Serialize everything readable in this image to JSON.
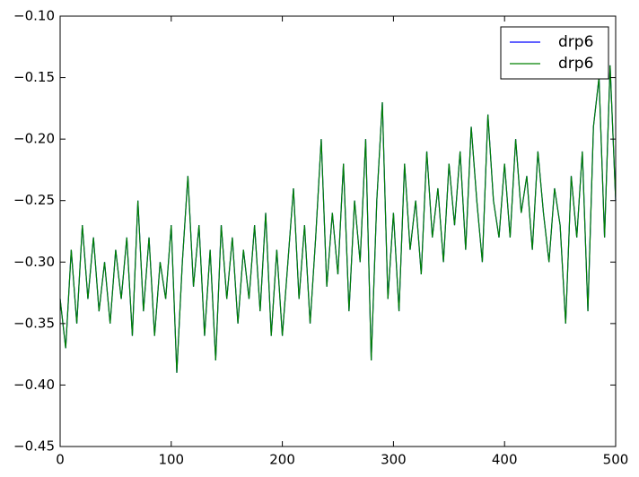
{
  "chart_data": {
    "type": "line",
    "x": [
      0,
      5,
      10,
      15,
      20,
      25,
      30,
      35,
      40,
      45,
      50,
      55,
      60,
      65,
      70,
      75,
      80,
      85,
      90,
      95,
      100,
      105,
      110,
      115,
      120,
      125,
      130,
      135,
      140,
      145,
      150,
      155,
      160,
      165,
      170,
      175,
      180,
      185,
      190,
      195,
      200,
      205,
      210,
      215,
      220,
      225,
      230,
      235,
      240,
      245,
      250,
      255,
      260,
      265,
      270,
      275,
      280,
      285,
      290,
      295,
      300,
      305,
      310,
      315,
      320,
      325,
      330,
      335,
      340,
      345,
      350,
      355,
      360,
      365,
      370,
      375,
      380,
      385,
      390,
      395,
      400,
      405,
      410,
      415,
      420,
      425,
      430,
      435,
      440,
      445,
      450,
      455,
      460,
      465,
      470,
      475,
      480,
      485,
      490,
      495,
      500
    ],
    "series": [
      {
        "name": "drp6",
        "color": "#0000ff",
        "values": [
          -0.33,
          -0.37,
          -0.29,
          -0.35,
          -0.27,
          -0.33,
          -0.28,
          -0.34,
          -0.3,
          -0.35,
          -0.29,
          -0.33,
          -0.28,
          -0.36,
          -0.25,
          -0.34,
          -0.28,
          -0.36,
          -0.3,
          -0.33,
          -0.27,
          -0.39,
          -0.3,
          -0.23,
          -0.32,
          -0.27,
          -0.36,
          -0.29,
          -0.38,
          -0.27,
          -0.33,
          -0.28,
          -0.35,
          -0.29,
          -0.33,
          -0.27,
          -0.34,
          -0.26,
          -0.36,
          -0.29,
          -0.36,
          -0.3,
          -0.24,
          -0.33,
          -0.27,
          -0.35,
          -0.28,
          -0.2,
          -0.32,
          -0.26,
          -0.31,
          -0.22,
          -0.34,
          -0.25,
          -0.3,
          -0.2,
          -0.38,
          -0.25,
          -0.17,
          -0.33,
          -0.26,
          -0.34,
          -0.22,
          -0.29,
          -0.25,
          -0.31,
          -0.21,
          -0.28,
          -0.24,
          -0.3,
          -0.22,
          -0.27,
          -0.21,
          -0.29,
          -0.19,
          -0.25,
          -0.3,
          -0.18,
          -0.25,
          -0.28,
          -0.22,
          -0.28,
          -0.2,
          -0.26,
          -0.23,
          -0.29,
          -0.21,
          -0.26,
          -0.3,
          -0.24,
          -0.27,
          -0.35,
          -0.23,
          -0.28,
          -0.21,
          -0.34,
          -0.19,
          -0.15,
          -0.28,
          -0.14,
          -0.25
        ]
      },
      {
        "name": "drp6",
        "color": "#008000",
        "values": [
          -0.33,
          -0.37,
          -0.29,
          -0.35,
          -0.27,
          -0.33,
          -0.28,
          -0.34,
          -0.3,
          -0.35,
          -0.29,
          -0.33,
          -0.28,
          -0.36,
          -0.25,
          -0.34,
          -0.28,
          -0.36,
          -0.3,
          -0.33,
          -0.27,
          -0.39,
          -0.3,
          -0.23,
          -0.32,
          -0.27,
          -0.36,
          -0.29,
          -0.38,
          -0.27,
          -0.33,
          -0.28,
          -0.35,
          -0.29,
          -0.33,
          -0.27,
          -0.34,
          -0.26,
          -0.36,
          -0.29,
          -0.36,
          -0.3,
          -0.24,
          -0.33,
          -0.27,
          -0.35,
          -0.28,
          -0.2,
          -0.32,
          -0.26,
          -0.31,
          -0.22,
          -0.34,
          -0.25,
          -0.3,
          -0.2,
          -0.38,
          -0.25,
          -0.17,
          -0.33,
          -0.26,
          -0.34,
          -0.22,
          -0.29,
          -0.25,
          -0.31,
          -0.21,
          -0.28,
          -0.24,
          -0.3,
          -0.22,
          -0.27,
          -0.21,
          -0.29,
          -0.19,
          -0.25,
          -0.3,
          -0.18,
          -0.25,
          -0.28,
          -0.22,
          -0.28,
          -0.2,
          -0.26,
          -0.23,
          -0.29,
          -0.21,
          -0.26,
          -0.3,
          -0.24,
          -0.27,
          -0.35,
          -0.23,
          -0.28,
          -0.21,
          -0.34,
          -0.19,
          -0.15,
          -0.28,
          -0.14,
          -0.25
        ]
      }
    ],
    "xlim": [
      0,
      500
    ],
    "xticks": [
      0,
      100,
      200,
      300,
      400,
      500
    ],
    "ylim": [
      -0.45,
      -0.1
    ],
    "yticks": [
      {
        "value": -0.45,
        "label": "−0.45"
      },
      {
        "value": -0.4,
        "label": "−0.40"
      },
      {
        "value": -0.35,
        "label": "−0.35"
      },
      {
        "value": -0.3,
        "label": "−0.30"
      },
      {
        "value": -0.25,
        "label": "−0.25"
      },
      {
        "value": -0.2,
        "label": "−0.20"
      },
      {
        "value": -0.15,
        "label": "−0.15"
      },
      {
        "value": -0.1,
        "label": "−0.10"
      }
    ],
    "legend": "upper right"
  }
}
